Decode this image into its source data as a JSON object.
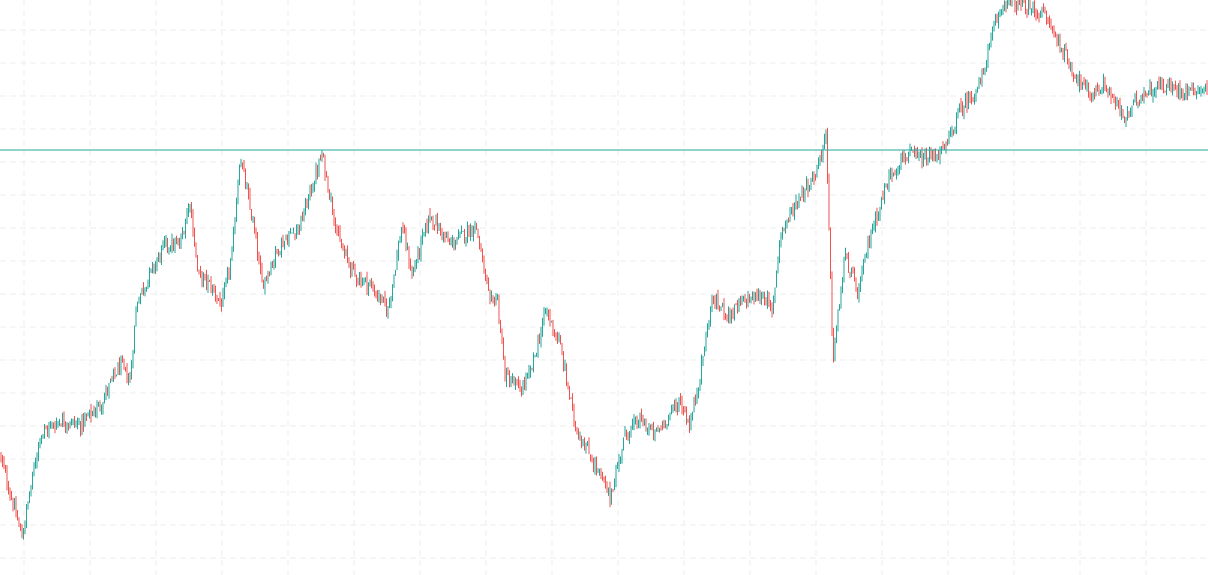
{
  "chart_data": {
    "type": "candlestick",
    "grid": true,
    "colors": {
      "up": "#26a69a",
      "down": "#ef5350",
      "level_line": "#26a69a",
      "grid": "#eeeeee",
      "background": "#ffffff"
    },
    "y_range": [
      0,
      575
    ],
    "horizontal_line": {
      "value": 425
    },
    "price_path": [
      [
        0,
        120
      ],
      [
        8,
        90
      ],
      [
        22,
        38
      ],
      [
        40,
        140
      ],
      [
        60,
        155
      ],
      [
        80,
        150
      ],
      [
        100,
        170
      ],
      [
        120,
        210
      ],
      [
        130,
        195
      ],
      [
        137,
        275
      ],
      [
        150,
        300
      ],
      [
        165,
        330
      ],
      [
        180,
        330
      ],
      [
        190,
        375
      ],
      [
        198,
        300
      ],
      [
        210,
        290
      ],
      [
        222,
        270
      ],
      [
        232,
        320
      ],
      [
        240,
        420
      ],
      [
        255,
        340
      ],
      [
        262,
        290
      ],
      [
        280,
        330
      ],
      [
        300,
        350
      ],
      [
        322,
        420
      ],
      [
        340,
        330
      ],
      [
        355,
        300
      ],
      [
        370,
        290
      ],
      [
        388,
        265
      ],
      [
        402,
        350
      ],
      [
        412,
        300
      ],
      [
        430,
        360
      ],
      [
        450,
        330
      ],
      [
        476,
        350
      ],
      [
        490,
        270
      ],
      [
        497,
        280
      ],
      [
        505,
        200
      ],
      [
        520,
        185
      ],
      [
        530,
        200
      ],
      [
        546,
        265
      ],
      [
        560,
        230
      ],
      [
        575,
        150
      ],
      [
        590,
        120
      ],
      [
        610,
        78
      ],
      [
        625,
        140
      ],
      [
        640,
        155
      ],
      [
        655,
        140
      ],
      [
        680,
        175
      ],
      [
        690,
        150
      ],
      [
        700,
        200
      ],
      [
        712,
        275
      ],
      [
        730,
        260
      ],
      [
        745,
        275
      ],
      [
        765,
        280
      ],
      [
        772,
        260
      ],
      [
        780,
        340
      ],
      [
        800,
        380
      ],
      [
        815,
        400
      ],
      [
        826,
        440
      ],
      [
        833,
        215
      ],
      [
        845,
        320
      ],
      [
        858,
        280
      ],
      [
        870,
        340
      ],
      [
        890,
        400
      ],
      [
        905,
        420
      ],
      [
        925,
        415
      ],
      [
        945,
        425
      ],
      [
        960,
        465
      ],
      [
        980,
        490
      ],
      [
        995,
        550
      ],
      [
        1005,
        575
      ],
      [
        1020,
        570
      ],
      [
        1045,
        560
      ],
      [
        1060,
        530
      ],
      [
        1075,
        500
      ],
      [
        1090,
        480
      ],
      [
        1105,
        490
      ],
      [
        1125,
        455
      ],
      [
        1140,
        480
      ],
      [
        1160,
        490
      ],
      [
        1180,
        485
      ],
      [
        1208,
        487
      ]
    ]
  }
}
